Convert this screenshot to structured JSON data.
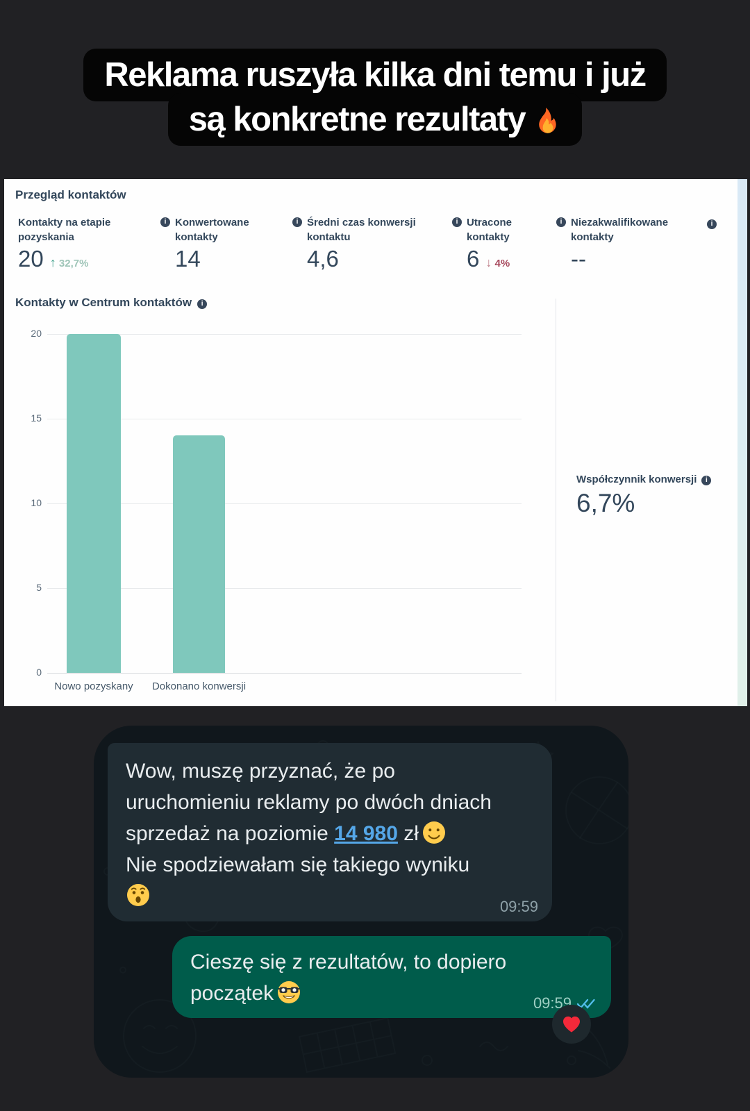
{
  "headline": {
    "line1": "Reklama ruszyła kilka dni temu i już",
    "line2": "są konkretne rezultaty",
    "fire_icon": "fire-emoji"
  },
  "dashboard": {
    "title": "Przegląd kontaktów",
    "metrics": [
      {
        "label": "Kontakty na etapie pozyskania",
        "value": "20",
        "delta": "32,7%",
        "delta_dir": "up",
        "has_info": false
      },
      {
        "label": "Konwertowane kontakty",
        "value": "14",
        "delta": "",
        "delta_dir": "",
        "has_info": true
      },
      {
        "label": "Średni czas konwersji kontaktu",
        "value": "4,6",
        "delta": "",
        "delta_dir": "",
        "has_info": true
      },
      {
        "label": "Utracone kontakty",
        "value": "6",
        "delta": "4%",
        "delta_dir": "down",
        "has_info": true
      },
      {
        "label": "Niezakwalifikowane kontakty",
        "value": "--",
        "delta": "",
        "delta_dir": "",
        "has_info": true
      }
    ],
    "chart_title": "Kontakty w Centrum kontaktów",
    "conversion_rate_label": "Współczynnik konwersji",
    "conversion_rate_value": "6,7%"
  },
  "chart_data": {
    "type": "bar",
    "title": "Kontakty w Centrum kontaktów",
    "categories": [
      "Nowo pozyskany",
      "Dokonano konwersji"
    ],
    "values": [
      20,
      14
    ],
    "yticks": [
      0,
      5,
      10,
      15,
      20
    ],
    "ylim": [
      0,
      20
    ],
    "xlabel": "",
    "ylabel": "",
    "grid": true,
    "legend": "none",
    "bar_color": "#7fc8bc"
  },
  "chat": {
    "messages": [
      {
        "direction": "received",
        "line1": "Wow, muszę przyznać, że po",
        "line2": "uruchomieniu reklamy po dwóch dniach",
        "line3_before_link": "sprzedaż na poziomie ",
        "link_text": "14 980",
        "line3_after_link": " zł",
        "emoji_after_link": "slightly-smiling-face",
        "line4": "Nie spodziewałam się takiego wyniku",
        "emoji_last_line": "surprised-face",
        "time": "09:59"
      },
      {
        "direction": "sent",
        "line1": "Cieszę się z rezultatów, to dopiero",
        "line2": "początek",
        "emoji": "nerd-face",
        "time": "09:59",
        "status": "read-double-check",
        "reaction": "red-heart"
      }
    ]
  },
  "colors": {
    "bar": "#7fc8bc",
    "delta_up_arrow": "#3fa08b",
    "delta_up_text": "#9fc5b8",
    "delta_down_arrow": "#bd7d88",
    "delta_down_text": "#a84a5e",
    "link": "#55a7e8",
    "checkmarks": "#53bdeb",
    "sent_bubble": "#005c4b",
    "received_bubble": "#202c33",
    "heart": "#f4293a"
  }
}
